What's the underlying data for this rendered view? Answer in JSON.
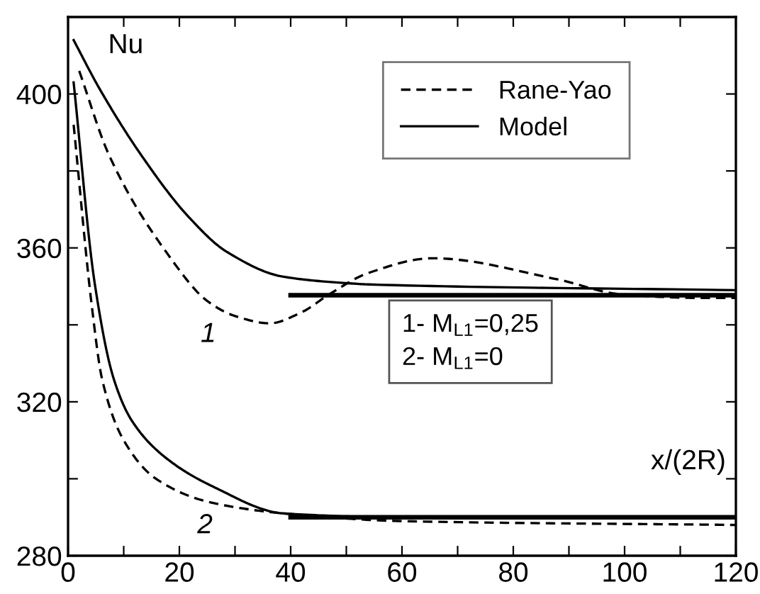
{
  "chart_data": {
    "type": "line",
    "xlabel": "x/(2R)",
    "ylabel": "Nu",
    "xlim": [
      0,
      120
    ],
    "ylim": [
      280,
      420
    ],
    "xticks": [
      0,
      {
        "value": 10,
        "label": null
      },
      20,
      {
        "value": 30,
        "label": null
      },
      40,
      {
        "value": 50,
        "label": null
      },
      60,
      {
        "value": 70,
        "label": null
      },
      80,
      {
        "value": 90,
        "label": null
      },
      100,
      {
        "value": 110,
        "label": null
      },
      120
    ],
    "yticks": [
      280,
      {
        "value": 300,
        "label": null
      },
      320,
      {
        "value": 340,
        "label": null
      },
      360,
      {
        "value": 380,
        "label": null
      },
      400
    ],
    "grid": false,
    "legend": "top right",
    "series": [
      {
        "name": "Rane-Yao",
        "color": "#000000",
        "line_style": "dashed",
        "x": [
          2,
          7.4,
          17.6,
          25.2,
          30,
          36.2,
          42,
          47,
          54,
          65.5,
          88,
          99,
          113.4,
          120
        ],
        "values": [
          406,
          384,
          359,
          346,
          342.3,
          340.4,
          343.3,
          348,
          353.5,
          357.3,
          351.8,
          348,
          347,
          347
        ]
      },
      {
        "name": "Model",
        "color": "#000000",
        "line_style": "solid",
        "x": [
          1,
          5.6,
          13.2,
          21.7,
          28.5,
          38.7,
          51.5,
          54,
          120
        ],
        "values": [
          414,
          401.5,
          384,
          368,
          359,
          352.5,
          350.7,
          350.5,
          349
        ]
      },
      {
        "color": "#000000",
        "line_style": "dashed",
        "x": [
          1,
          4.3,
          6.1,
          10,
          15.8,
          25.2,
          38.7,
          60,
          120
        ],
        "values": [
          392,
          344.5,
          326,
          310,
          300,
          294,
          291,
          289,
          288
        ]
      },
      {
        "color": "#000000",
        "line_style": "solid",
        "x": [
          1,
          4.8,
          8.2,
          11.5,
          17.6,
          26,
          38.7,
          60,
          120
        ],
        "values": [
          403,
          350.7,
          326,
          315,
          305.4,
          298,
          291,
          290,
          290
        ]
      },
      {
        "color": "#000000",
        "line_style": "solid",
        "x": [
          40,
          120
        ],
        "values": [
          347.7,
          347.7
        ]
      },
      {
        "color": "#000000",
        "line_style": "solid",
        "x": [
          40,
          120
        ],
        "values": [
          290,
          290
        ]
      }
    ],
    "annotations": [
      "1",
      "2",
      "1- M$_{L1}$=0,25\n2- M$_{L1}$=0"
    ]
  }
}
